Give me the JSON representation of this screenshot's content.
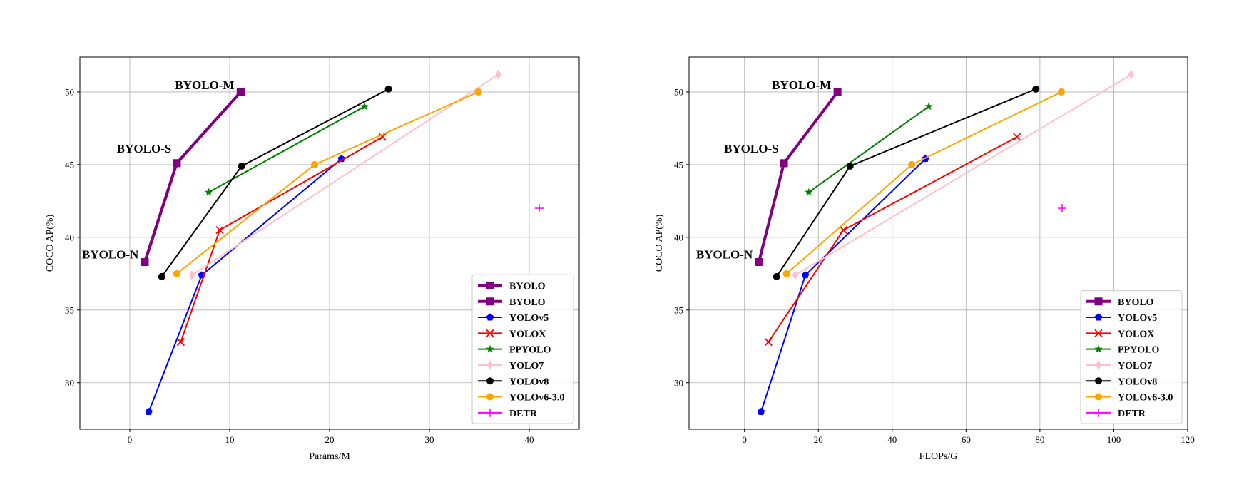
{
  "chart_data": [
    {
      "type": "line",
      "xlabel": "Params/M",
      "ylabel": "COCO AP(%)",
      "xlim": [
        -5,
        45
      ],
      "ylim": [
        26.8,
        52.4
      ],
      "xticks": [
        0,
        10,
        20,
        30,
        40
      ],
      "yticks": [
        30,
        35,
        40,
        45,
        50
      ],
      "grid": true,
      "legend_position": "lower-right",
      "series": [
        {
          "name": "BYOLO",
          "color": "#800080",
          "marker": "square",
          "width": 4,
          "x": [
            1.5,
            4.7,
            11.1
          ],
          "y": [
            38.3,
            45.1,
            50.0
          ]
        },
        {
          "name": "BYOLO",
          "color": "#800080",
          "marker": "square",
          "width": 4,
          "x": [
            1.5,
            4.7,
            11.1
          ],
          "y": [
            38.3,
            45.1,
            50.0
          ]
        },
        {
          "name": "YOLOv5",
          "color": "#0000ff",
          "marker": "pentagon",
          "width": 2,
          "x": [
            1.9,
            7.2,
            21.2
          ],
          "y": [
            28.0,
            37.4,
            45.4
          ]
        },
        {
          "name": "YOLOX",
          "color": "#ff0000",
          "marker": "x",
          "width": 2,
          "x": [
            5.1,
            9.0,
            25.3
          ],
          "y": [
            32.8,
            40.5,
            46.9
          ]
        },
        {
          "name": "PPYOLO",
          "color": "#008000",
          "marker": "star",
          "width": 2,
          "x": [
            7.9,
            23.5
          ],
          "y": [
            43.1,
            49.0
          ]
        },
        {
          "name": "YOLO7",
          "color": "#ffc0cb",
          "marker": "thin_diamond",
          "width": 2,
          "x": [
            6.2,
            36.9
          ],
          "y": [
            37.4,
            51.2
          ]
        },
        {
          "name": "YOLOv8",
          "color": "#000000",
          "marker": "circle",
          "width": 2,
          "x": [
            3.2,
            11.2,
            25.9
          ],
          "y": [
            37.3,
            44.9,
            50.2
          ]
        },
        {
          "name": "YOLOv6-3.0",
          "color": "#ffa500",
          "marker": "circle",
          "width": 2,
          "x": [
            4.7,
            18.5,
            34.9
          ],
          "y": [
            37.5,
            45.0,
            50.0
          ]
        },
        {
          "name": "DETR",
          "color": "#ff00ff",
          "marker": "plus",
          "width": 2,
          "x": [
            41.0
          ],
          "y": [
            42.0
          ]
        }
      ],
      "annotations": [
        {
          "text": "BYOLO-M",
          "x": 11.1,
          "y": 50.0
        },
        {
          "text": "BYOLO-S",
          "x": 4.7,
          "y": 45.1
        },
        {
          "text": "BYOLO-N",
          "x": 1.5,
          "y": 38.3
        }
      ]
    },
    {
      "type": "line",
      "xlabel": "FLOPs/G",
      "ylabel": "COCO AP(%)",
      "xlim": [
        -15,
        120
      ],
      "ylim": [
        26.8,
        52.4
      ],
      "xticks": [
        0,
        20,
        40,
        60,
        80,
        100,
        120
      ],
      "yticks": [
        30,
        35,
        40,
        45,
        50
      ],
      "grid": true,
      "legend_position": "lower-right",
      "series": [
        {
          "name": "BYOLO",
          "color": "#800080",
          "marker": "square",
          "width": 4,
          "x": [
            3.9,
            10.7,
            25.2
          ],
          "y": [
            38.3,
            45.1,
            50.0
          ]
        },
        {
          "name": "YOLOv5",
          "color": "#0000ff",
          "marker": "pentagon",
          "width": 2,
          "x": [
            4.5,
            16.5,
            49.0
          ],
          "y": [
            28.0,
            37.4,
            45.4
          ]
        },
        {
          "name": "YOLOX",
          "color": "#ff0000",
          "marker": "x",
          "width": 2,
          "x": [
            6.5,
            26.8,
            73.8
          ],
          "y": [
            32.8,
            40.5,
            46.9
          ]
        },
        {
          "name": "PPYOLO",
          "color": "#008000",
          "marker": "star",
          "width": 2,
          "x": [
            17.4,
            49.9
          ],
          "y": [
            43.1,
            49.0
          ]
        },
        {
          "name": "YOLO7",
          "color": "#ffc0cb",
          "marker": "thin_diamond",
          "width": 2,
          "x": [
            13.7,
            104.7
          ],
          "y": [
            37.4,
            51.2
          ]
        },
        {
          "name": "YOLOv8",
          "color": "#000000",
          "marker": "circle",
          "width": 2,
          "x": [
            8.7,
            28.6,
            78.9
          ],
          "y": [
            37.3,
            44.9,
            50.2
          ]
        },
        {
          "name": "YOLOv6-3.0",
          "color": "#ffa500",
          "marker": "circle",
          "width": 2,
          "x": [
            11.4,
            45.3,
            85.8
          ],
          "y": [
            37.5,
            45.0,
            50.0
          ]
        },
        {
          "name": "DETR",
          "color": "#ff00ff",
          "marker": "plus",
          "width": 2,
          "x": [
            86.0
          ],
          "y": [
            42.0
          ]
        }
      ],
      "annotations": [
        {
          "text": "BYOLO-M",
          "x": 25.2,
          "y": 50.0
        },
        {
          "text": "BYOLO-S",
          "x": 10.7,
          "y": 45.1
        },
        {
          "text": "BYOLO-N",
          "x": 3.9,
          "y": 38.3
        }
      ]
    }
  ]
}
